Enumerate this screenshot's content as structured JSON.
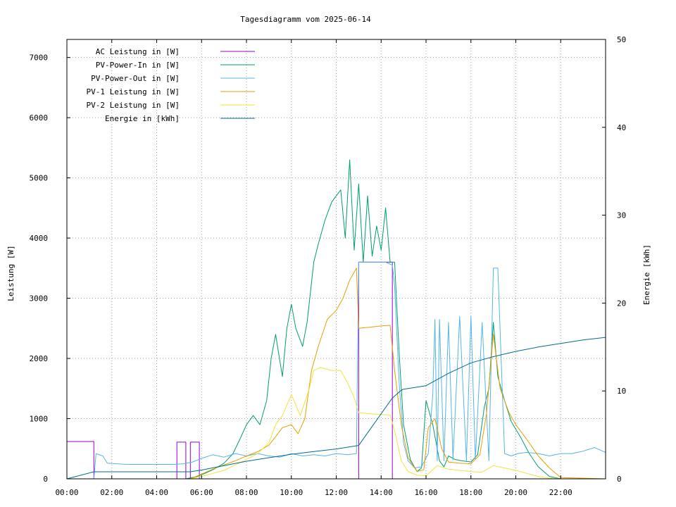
{
  "chart_data": {
    "type": "line",
    "title": "Tagesdiagramm vom 2025-06-14",
    "ylabel": "Leistung [W]",
    "y2label": "Energie [kWh]",
    "xlim": [
      0,
      24
    ],
    "ylim": [
      0,
      7300
    ],
    "y2lim": [
      0,
      50
    ],
    "grid": true,
    "legend_position": "top-left",
    "x_ticks": [
      {
        "value": 0,
        "label": "00:00"
      },
      {
        "value": 2,
        "label": "02:00"
      },
      {
        "value": 4,
        "label": "04:00"
      },
      {
        "value": 6,
        "label": "06:00"
      },
      {
        "value": 8,
        "label": "08:00"
      },
      {
        "value": 10,
        "label": "10:00"
      },
      {
        "value": 12,
        "label": "12:00"
      },
      {
        "value": 14,
        "label": "14:00"
      },
      {
        "value": 16,
        "label": "16:00"
      },
      {
        "value": 18,
        "label": "18:00"
      },
      {
        "value": 20,
        "label": "20:00"
      },
      {
        "value": 22,
        "label": "22:00"
      }
    ],
    "y_ticks": [
      {
        "value": 0,
        "label": "0"
      },
      {
        "value": 1000,
        "label": "1000"
      },
      {
        "value": 2000,
        "label": "2000"
      },
      {
        "value": 3000,
        "label": "3000"
      },
      {
        "value": 4000,
        "label": "4000"
      },
      {
        "value": 5000,
        "label": "5000"
      },
      {
        "value": 6000,
        "label": "6000"
      },
      {
        "value": 7000,
        "label": "7000"
      }
    ],
    "y2_ticks": [
      {
        "value": 0,
        "label": "0"
      },
      {
        "value": 10,
        "label": "10"
      },
      {
        "value": 20,
        "label": "20"
      },
      {
        "value": 30,
        "label": "30"
      },
      {
        "value": 40,
        "label": "40"
      },
      {
        "value": 50,
        "label": "50"
      }
    ],
    "series": [
      {
        "name": "AC Leistung in [W]",
        "color": "#9400d3",
        "axis": "y",
        "x": [
          0.0,
          1.2,
          1.2,
          4.9,
          4.9,
          5.3,
          5.3,
          5.5,
          5.5,
          5.9,
          5.9,
          13.0,
          13.0,
          14.5,
          14.5,
          24.0
        ],
        "y": [
          620,
          620,
          0,
          0,
          610,
          610,
          0,
          0,
          610,
          610,
          0,
          0,
          3600,
          3600,
          0,
          0
        ]
      },
      {
        "name": "PV-Power-In in [W]",
        "color": "#009e73",
        "axis": "y",
        "x": [
          0.0,
          5.3,
          5.8,
          6.2,
          6.6,
          7.0,
          7.4,
          7.7,
          8.0,
          8.3,
          8.6,
          8.9,
          9.1,
          9.3,
          9.6,
          9.8,
          10.0,
          10.2,
          10.5,
          10.7,
          11.0,
          11.2,
          11.5,
          11.8,
          12.0,
          12.2,
          12.4,
          12.6,
          12.8,
          13.0,
          13.2,
          13.4,
          13.6,
          13.8,
          14.0,
          14.2,
          14.4,
          14.6,
          14.8,
          15.0,
          15.3,
          15.6,
          15.8,
          16.0,
          16.3,
          16.6,
          16.8,
          17.0,
          17.3,
          17.6,
          18.0,
          18.3,
          18.6,
          18.8,
          19.0,
          19.2,
          19.5,
          19.8,
          20.2,
          20.6,
          21.0,
          21.5,
          22.0,
          24.0
        ],
        "y": [
          0,
          0,
          40,
          100,
          170,
          260,
          420,
          650,
          900,
          1050,
          900,
          1300,
          2000,
          2400,
          1700,
          2500,
          2900,
          2500,
          2200,
          2600,
          3600,
          3900,
          4300,
          4600,
          4700,
          4800,
          4000,
          5300,
          3800,
          4900,
          3600,
          4700,
          3700,
          4200,
          3800,
          4500,
          3600,
          3600,
          2100,
          900,
          320,
          120,
          180,
          1300,
          900,
          300,
          200,
          380,
          320,
          300,
          280,
          400,
          1200,
          1500,
          2600,
          1700,
          1300,
          950,
          700,
          420,
          200,
          40,
          0,
          0
        ]
      },
      {
        "name": "PV-Power-Out in [W]",
        "color": "#56b4e9",
        "axis": "y",
        "x": [
          0.0,
          1.2,
          1.3,
          1.6,
          1.8,
          2.2,
          2.7,
          3.2,
          3.7,
          4.2,
          4.8,
          5.2,
          5.6,
          6.0,
          6.5,
          7.0,
          7.5,
          8.0,
          8.5,
          9.0,
          9.5,
          10.0,
          10.5,
          11.0,
          11.5,
          12.0,
          12.5,
          12.9,
          13.0,
          13.4,
          13.8,
          14.2,
          14.5,
          14.6,
          14.8,
          15.0,
          15.2,
          15.5,
          15.8,
          16.1,
          16.3,
          16.4,
          16.5,
          16.6,
          16.8,
          17.0,
          17.2,
          17.5,
          17.8,
          18.0,
          18.2,
          18.5,
          18.8,
          19.0,
          19.2,
          19.5,
          19.8,
          20.1,
          20.5,
          21.0,
          21.5,
          22.0,
          22.5,
          23.0,
          23.5,
          24.0
        ],
        "y": [
          0,
          0,
          420,
          380,
          260,
          250,
          240,
          240,
          240,
          240,
          240,
          250,
          280,
          340,
          400,
          360,
          420,
          380,
          420,
          380,
          360,
          420,
          380,
          400,
          380,
          420,
          400,
          420,
          3600,
          3600,
          3600,
          3600,
          3550,
          3200,
          1600,
          600,
          300,
          180,
          200,
          420,
          1400,
          2650,
          300,
          2650,
          300,
          2600,
          320,
          2700,
          300,
          2700,
          320,
          2600,
          300,
          3500,
          3500,
          420,
          380,
          420,
          440,
          420,
          380,
          420,
          420,
          460,
          520,
          440
        ]
      },
      {
        "name": "PV-1 Leistung in [W]",
        "color": "#e69f00",
        "axis": "y",
        "x": [
          0.0,
          5.5,
          6.0,
          6.5,
          7.0,
          7.5,
          8.0,
          8.5,
          9.0,
          9.3,
          9.6,
          10.0,
          10.3,
          10.6,
          10.9,
          11.2,
          11.6,
          12.0,
          12.3,
          12.6,
          12.9,
          13.0,
          13.5,
          14.0,
          14.4,
          14.6,
          14.9,
          15.2,
          15.6,
          15.9,
          16.1,
          16.4,
          16.7,
          17.0,
          17.5,
          18.0,
          18.4,
          18.7,
          19.0,
          19.3,
          19.7,
          20.0,
          20.5,
          21.0,
          21.5,
          22.0,
          24.0
        ],
        "y": [
          0,
          0,
          80,
          160,
          230,
          300,
          380,
          450,
          560,
          700,
          850,
          900,
          750,
          1000,
          1800,
          2200,
          2650,
          2800,
          3000,
          3300,
          3500,
          2500,
          2520,
          2540,
          2550,
          1800,
          900,
          350,
          120,
          150,
          850,
          1000,
          500,
          280,
          260,
          250,
          400,
          1100,
          2400,
          1500,
          1100,
          900,
          650,
          380,
          180,
          20,
          0
        ]
      },
      {
        "name": "PV-2 Leistung in [W]",
        "color": "#f0e442",
        "axis": "y",
        "x": [
          0.0,
          5.5,
          6.0,
          6.5,
          7.0,
          7.5,
          8.0,
          8.5,
          9.0,
          9.3,
          9.6,
          10.0,
          10.4,
          10.8,
          11.0,
          11.3,
          11.8,
          12.2,
          12.5,
          12.8,
          13.0,
          13.5,
          14.0,
          14.4,
          14.6,
          14.9,
          15.2,
          15.6,
          16.0,
          16.5,
          17.0,
          17.5,
          18.0,
          18.5,
          19.0,
          19.5,
          20.0,
          20.5,
          21.0,
          21.5,
          22.0,
          24.0
        ],
        "y": [
          0,
          0,
          40,
          90,
          140,
          230,
          320,
          420,
          600,
          900,
          1050,
          1400,
          1050,
          1500,
          1800,
          1850,
          1800,
          1800,
          1600,
          1350,
          1100,
          1080,
          1070,
          1060,
          800,
          300,
          120,
          60,
          50,
          220,
          160,
          140,
          120,
          110,
          220,
          180,
          140,
          90,
          40,
          10,
          0,
          0
        ]
      },
      {
        "name": "Energie in [kWh]",
        "color": "#006d8f",
        "axis": "y2",
        "x": [
          0.0,
          1.2,
          5.5,
          6.0,
          7.0,
          8.0,
          9.0,
          10.0,
          11.0,
          12.0,
          13.0,
          13.5,
          14.0,
          14.5,
          14.9,
          15.0,
          16.0,
          17.0,
          18.0,
          19.0,
          20.0,
          21.0,
          22.0,
          23.0,
          24.0
        ],
        "y": [
          0.0,
          0.8,
          0.8,
          1.0,
          1.5,
          2.0,
          2.4,
          2.8,
          3.1,
          3.4,
          3.8,
          5.6,
          7.4,
          9.2,
          10.1,
          10.2,
          10.6,
          12.0,
          13.2,
          13.9,
          14.5,
          15.0,
          15.4,
          15.8,
          16.1
        ]
      }
    ]
  }
}
